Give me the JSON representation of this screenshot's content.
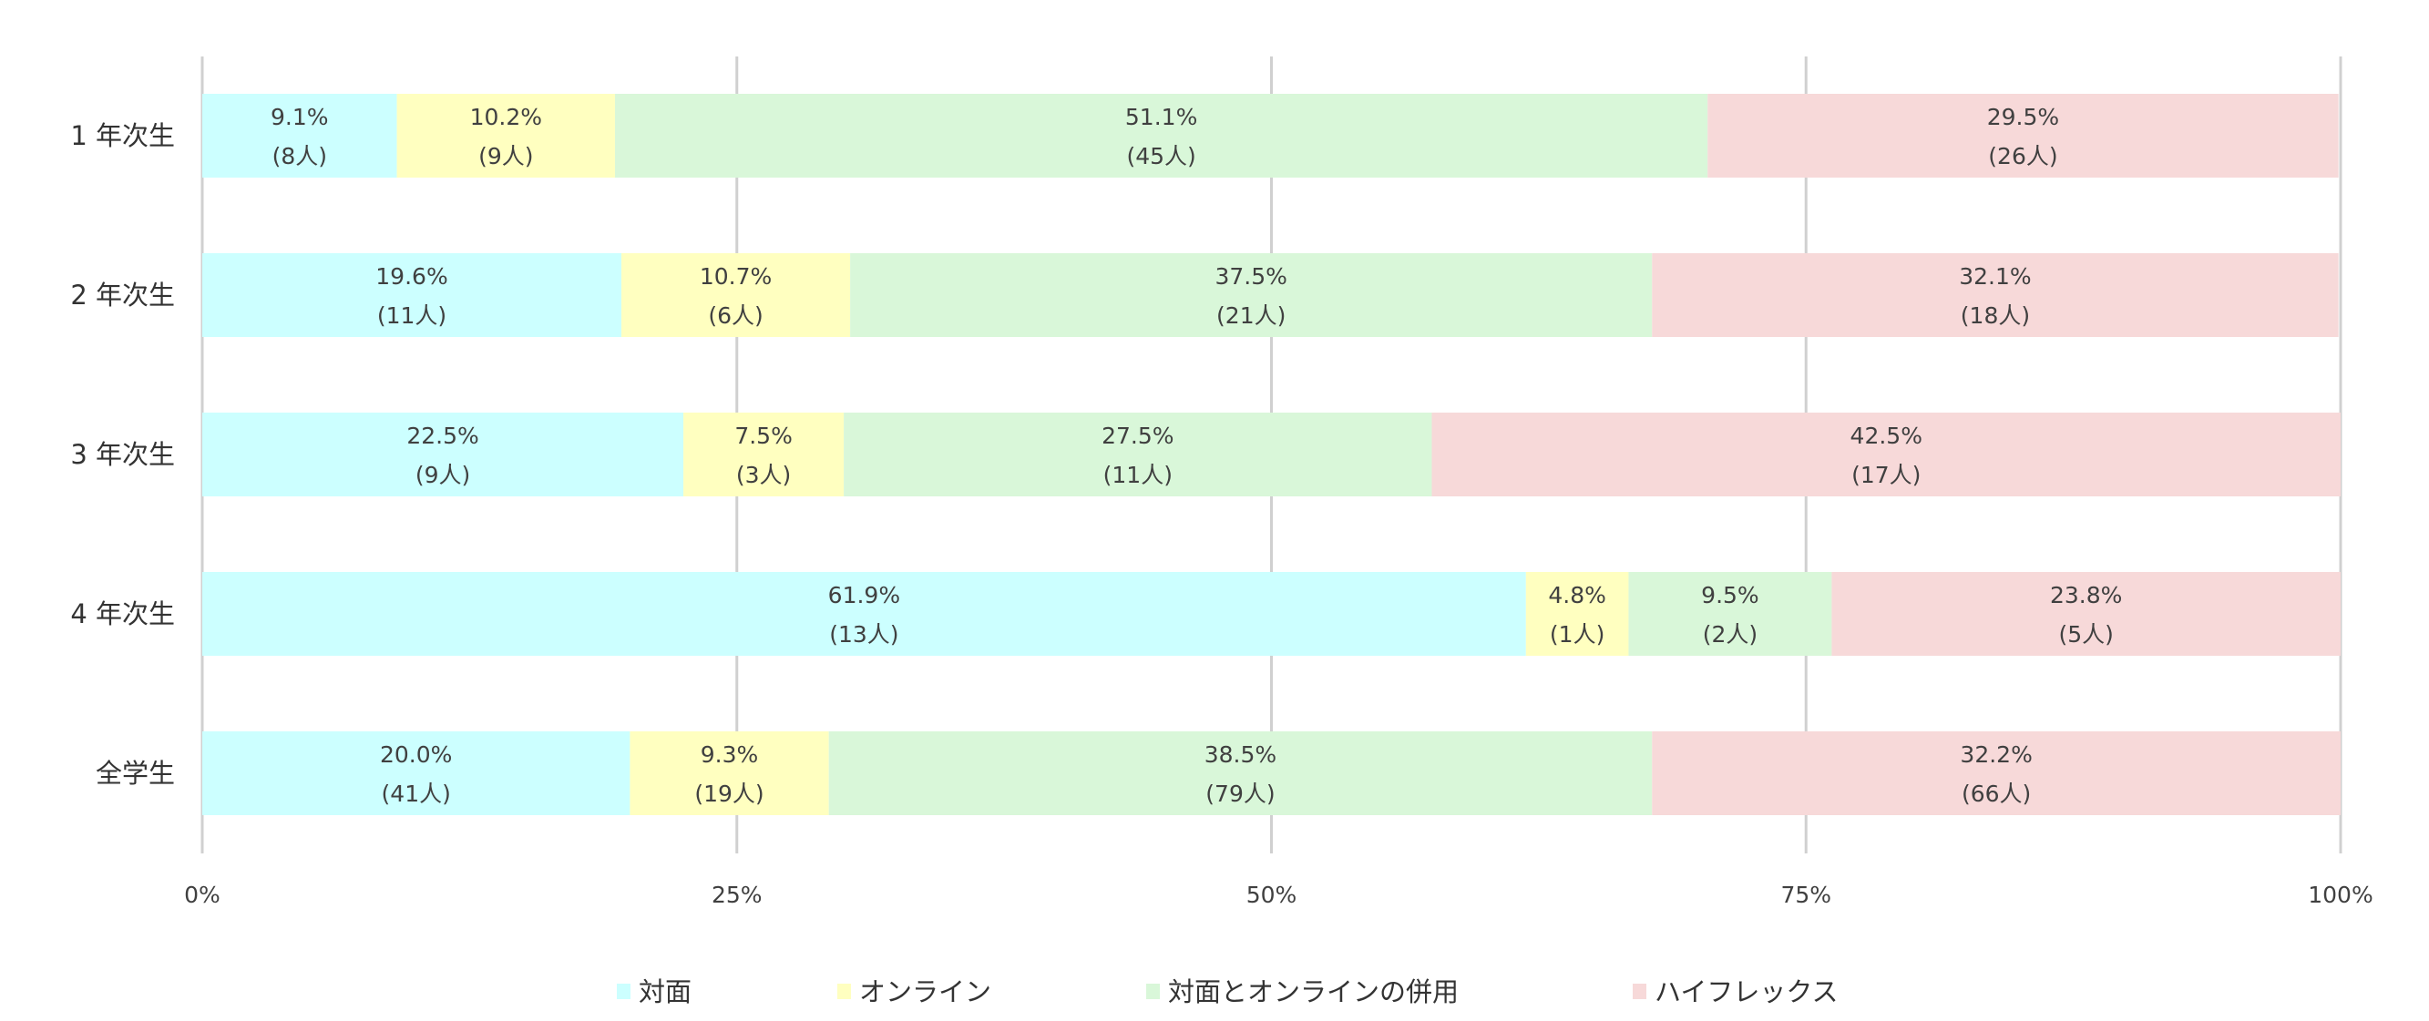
{
  "chart_data": {
    "type": "bar",
    "orientation": "horizontal",
    "stacked": "percent",
    "title": "",
    "xlabel": "",
    "ylabel": "",
    "xlim": [
      0,
      100
    ],
    "x_ticks": [
      "0%",
      "25%",
      "50%",
      "75%",
      "100%"
    ],
    "grid": true,
    "legend_position": "bottom",
    "categories": [
      "1 年次生",
      "2 年次生",
      "3 年次生",
      "4 年次生",
      "全学生"
    ],
    "series": [
      {
        "name": "対面",
        "color": "#CCFFFF",
        "values": [
          9.1,
          19.6,
          22.5,
          61.9,
          20.0
        ],
        "counts": [
          8,
          11,
          9,
          13,
          41
        ]
      },
      {
        "name": "オンライン",
        "color": "#FFFFC0",
        "values": [
          10.2,
          10.7,
          7.5,
          4.8,
          9.3
        ],
        "counts": [
          9,
          6,
          3,
          1,
          19
        ]
      },
      {
        "name": "対面とオンラインの併用",
        "color": "#D9F7D9",
        "values": [
          51.1,
          37.5,
          27.5,
          9.5,
          38.5
        ],
        "counts": [
          45,
          21,
          11,
          2,
          79
        ]
      },
      {
        "name": "ハイフレックス",
        "color": "#F7D9D9",
        "values": [
          29.5,
          32.1,
          42.5,
          23.8,
          32.2
        ],
        "counts": [
          26,
          18,
          17,
          5,
          66
        ]
      }
    ],
    "data_label_format": "{pct}% / ({count}人)"
  }
}
